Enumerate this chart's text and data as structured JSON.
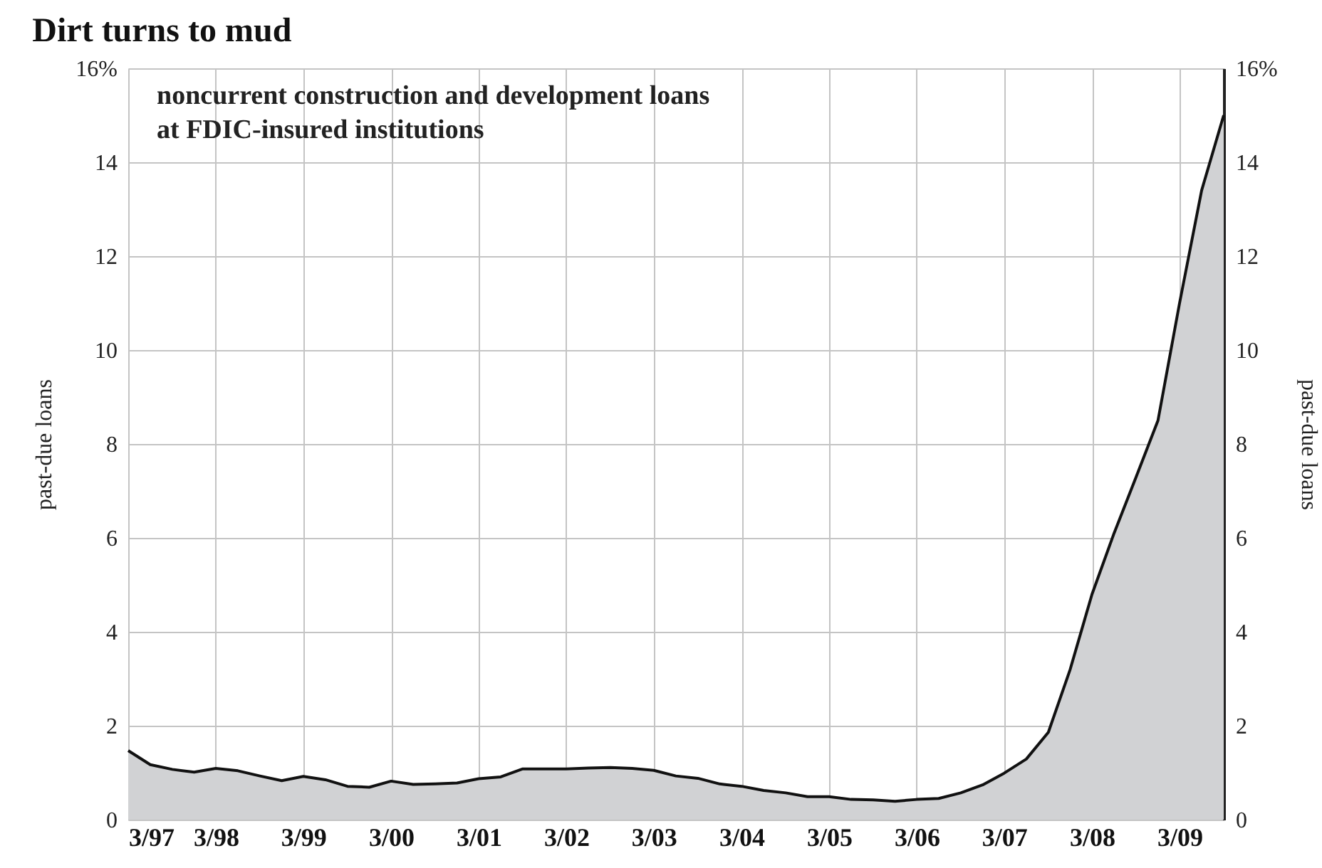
{
  "chart_data": {
    "type": "area",
    "title": "Dirt turns to mud",
    "subtitle": "noncurrent construction and development loans\nat FDIC-insured institutions",
    "ylabel": "past-due loans",
    "y2label": "past-due loans",
    "x": [
      "1997-03",
      "1997-06",
      "1997-09",
      "1997-12",
      "1998-03",
      "1998-06",
      "1998-09",
      "1998-12",
      "1999-03",
      "1999-06",
      "1999-09",
      "1999-12",
      "2000-03",
      "2000-06",
      "2000-09",
      "2000-12",
      "2001-03",
      "2001-06",
      "2001-09",
      "2001-12",
      "2002-03",
      "2002-06",
      "2002-09",
      "2002-12",
      "2003-03",
      "2003-06",
      "2003-09",
      "2003-12",
      "2004-03",
      "2004-06",
      "2004-09",
      "2004-12",
      "2005-03",
      "2005-06",
      "2005-09",
      "2005-12",
      "2006-03",
      "2006-06",
      "2006-09",
      "2006-12",
      "2007-03",
      "2007-06",
      "2007-09",
      "2007-12",
      "2008-03",
      "2008-06",
      "2008-09",
      "2008-12",
      "2009-03",
      "2009-06",
      "2009-09"
    ],
    "series": [
      {
        "color": "#d1d2d4",
        "values": [
          1.47,
          1.17,
          1.07,
          1.01,
          1.09,
          1.04,
          0.93,
          0.83,
          0.92,
          0.85,
          0.71,
          0.69,
          0.82,
          0.75,
          0.76,
          0.78,
          0.87,
          0.91,
          1.08,
          1.08,
          1.08,
          1.1,
          1.11,
          1.09,
          1.05,
          0.93,
          0.88,
          0.76,
          0.71,
          0.62,
          0.57,
          0.49,
          0.49,
          0.43,
          0.42,
          0.39,
          0.43,
          0.45,
          0.57,
          0.74,
          0.99,
          1.29,
          1.86,
          3.2,
          4.8,
          6.1,
          7.3,
          8.5,
          11.0,
          13.4,
          15.0
        ]
      }
    ],
    "xlim": [
      "1997-03",
      "2009-09"
    ],
    "xticks": [
      {
        "value": "1997-03",
        "label": "3/97"
      },
      {
        "value": "1998-03",
        "label": "3/98"
      },
      {
        "value": "1999-03",
        "label": "3/99"
      },
      {
        "value": "2000-03",
        "label": "3/00"
      },
      {
        "value": "2001-03",
        "label": "3/01"
      },
      {
        "value": "2002-03",
        "label": "3/02"
      },
      {
        "value": "2003-03",
        "label": "3/03"
      },
      {
        "value": "2004-03",
        "label": "3/04"
      },
      {
        "value": "2005-03",
        "label": "3/05"
      },
      {
        "value": "2006-03",
        "label": "3/06"
      },
      {
        "value": "2007-03",
        "label": "3/07"
      },
      {
        "value": "2008-03",
        "label": "3/08"
      },
      {
        "value": "2009-03",
        "label": "3/09"
      }
    ],
    "ylim": [
      0,
      16
    ],
    "yticks": [
      0,
      2,
      4,
      6,
      8,
      10,
      12,
      14,
      {
        "value": 16,
        "label": "16%"
      }
    ],
    "y2lim": [
      0,
      16
    ],
    "y2ticks": [
      0,
      2,
      4,
      6,
      8,
      10,
      12,
      14,
      {
        "value": 16,
        "label": "16%"
      }
    ],
    "grid": true
  }
}
